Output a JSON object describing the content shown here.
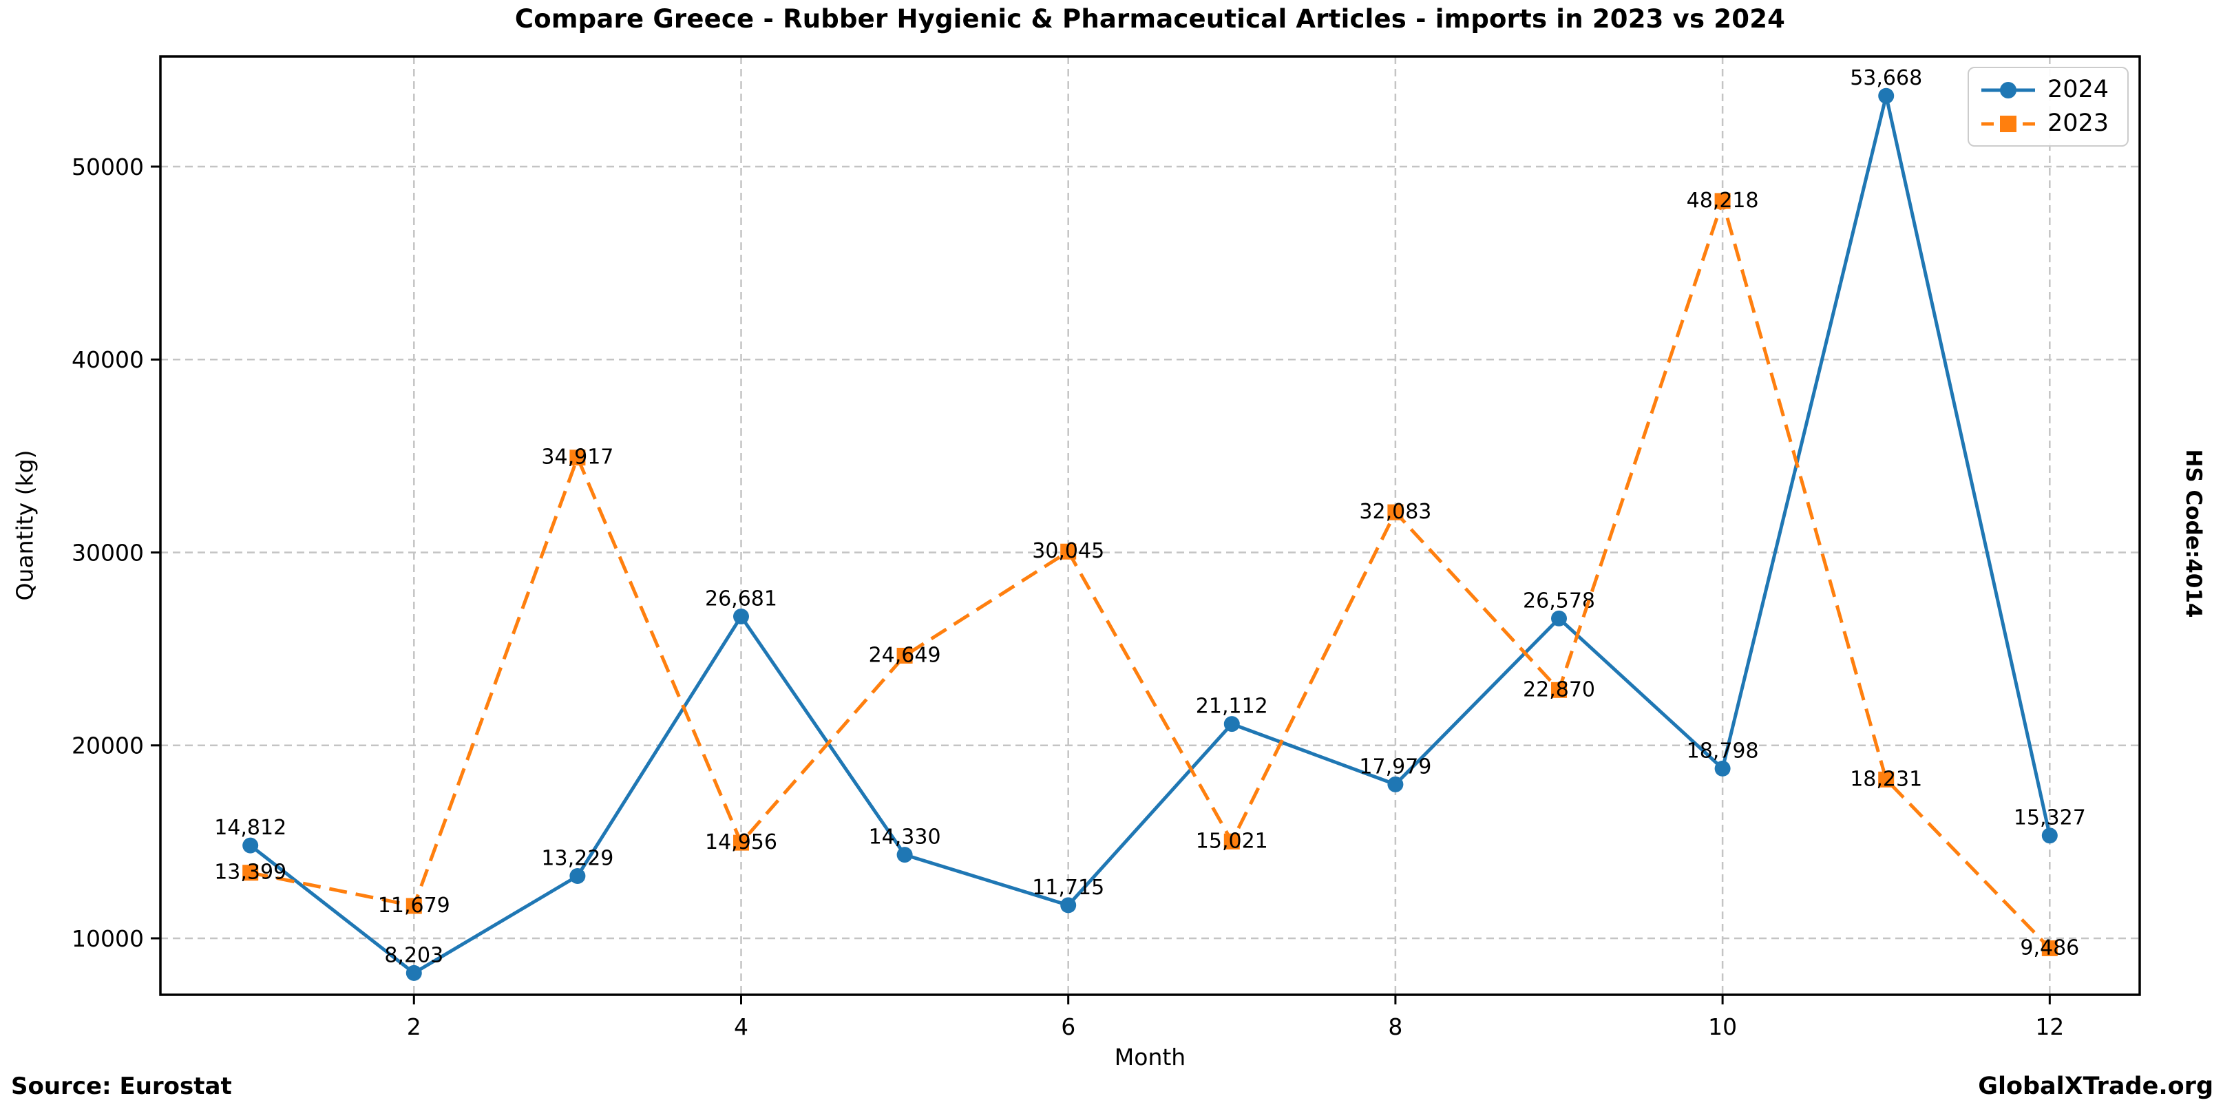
{
  "title": "Compare Greece - Rubber Hygienic & Pharmaceutical Articles - imports in 2023 vs 2024",
  "side_label": "HS Code:4014",
  "footer": {
    "source": "Source: Eurostat",
    "brand": "GlobalXTrade.org"
  },
  "colors": {
    "series_2024": "#1f77b4",
    "series_2023": "#ff7f0e",
    "grid": "#c4c4c4",
    "axis": "#000000"
  },
  "legend": {
    "position": "upper right",
    "items": [
      {
        "label": "2024"
      },
      {
        "label": "2023"
      }
    ]
  },
  "chart_data": {
    "type": "line",
    "title": "Compare Greece - Rubber Hygienic & Pharmaceutical Articles - imports in 2023 vs 2024",
    "xlabel": "Month",
    "ylabel": "Quantity (kg)",
    "x": [
      1,
      2,
      3,
      4,
      5,
      6,
      7,
      8,
      9,
      10,
      11,
      12
    ],
    "xticks": [
      2,
      4,
      6,
      8,
      10,
      12
    ],
    "yticks": [
      10000,
      20000,
      30000,
      40000,
      50000
    ],
    "xlim": [
      0.45,
      12.55
    ],
    "ylim": [
      7074,
      55709
    ],
    "grid": true,
    "grid_style": "dashed",
    "legend_position": "upper right",
    "series": [
      {
        "name": "2024",
        "color": "#1f77b4",
        "marker": "circle",
        "linestyle": "solid",
        "values": [
          14812,
          8203,
          13229,
          26681,
          14330,
          11715,
          21112,
          17979,
          26578,
          18798,
          53668,
          15327
        ]
      },
      {
        "name": "2023",
        "color": "#ff7f0e",
        "marker": "square",
        "linestyle": "dashed",
        "values": [
          13399,
          11679,
          34917,
          14956,
          24649,
          30045,
          15021,
          32083,
          22870,
          48218,
          18231,
          9486
        ]
      }
    ],
    "point_label_format": "#,###"
  }
}
